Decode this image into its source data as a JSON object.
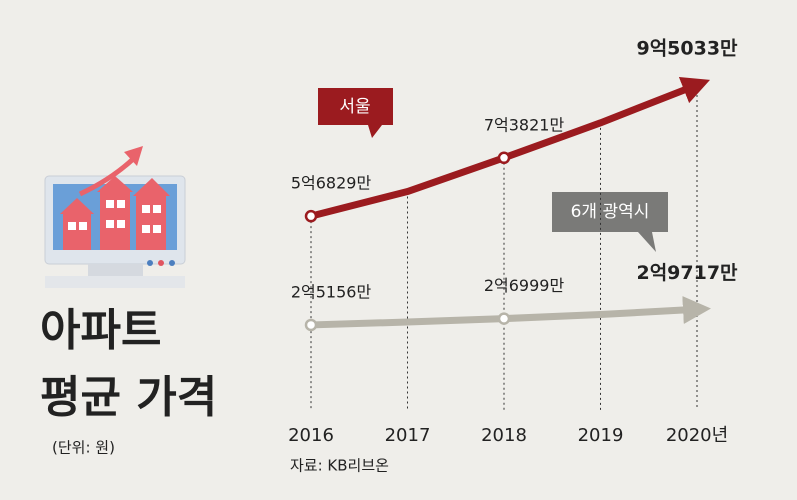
{
  "chart_data": {
    "type": "line",
    "title": [
      "아파트",
      "평균 가격"
    ],
    "subtitle": "(단위: 원)",
    "source": "자료: KB리브온",
    "categories": [
      "2016",
      "2017",
      "2018",
      "2019",
      "2020년"
    ],
    "series": [
      {
        "name": "서울",
        "color": "#9b1b1f",
        "values": [
          56829,
          64000,
          73821,
          84000,
          95033
        ],
        "value_labels": [
          "5억6829만",
          null,
          "7억3821만",
          null,
          "9억5033만"
        ]
      },
      {
        "name": "6개 광역시",
        "color": "#b7b4a9",
        "values": [
          25156,
          26000,
          26999,
          28200,
          29717
        ],
        "value_labels": [
          "2억5156만",
          null,
          "2억6999만",
          null,
          "2억9717만"
        ]
      }
    ],
    "ylim": [
      3300,
      102300
    ]
  }
}
